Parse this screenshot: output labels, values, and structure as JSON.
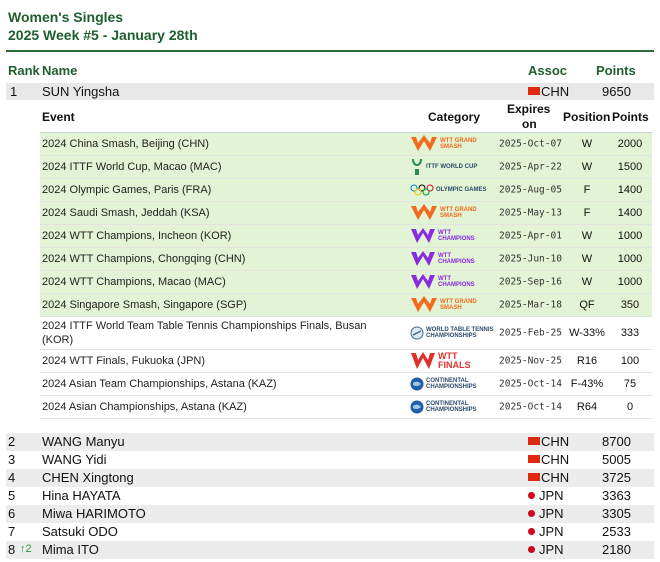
{
  "header": {
    "title": "Women's Singles",
    "week": "2025 Week #5 - January 28th"
  },
  "columns": {
    "rank": "Rank",
    "name": "Name",
    "assoc": "Assoc",
    "points": "Points"
  },
  "leader": {
    "rank": "1",
    "name": "SUN Yingsha",
    "assoc": "CHN",
    "points": "9650"
  },
  "event_columns": {
    "event": "Event",
    "category": "Category",
    "expires_l1": "Expires",
    "expires_l2": "on",
    "position": "Position",
    "points": "Points"
  },
  "events": [
    {
      "name": "2024 China Smash, Beijing (CHN)",
      "category_icon": "wtt-smash-logo",
      "logo_l1": "WTT GRAND",
      "logo_l2": "SMASH",
      "expires": "2025-Oct-07",
      "position": "W",
      "points": "2000",
      "highlight": true
    },
    {
      "name": "2024 ITTF World Cup, Macao (MAC)",
      "category_icon": "ittf-world-cup-logo",
      "logo_l1": "ITTF WORLD CUP",
      "logo_l2": "",
      "expires": "2025-Apr-22",
      "position": "W",
      "points": "1500",
      "highlight": true
    },
    {
      "name": "2024 Olympic Games, Paris (FRA)",
      "category_icon": "olympic-games-logo",
      "logo_l1": "OLYMPIC GAMES",
      "logo_l2": "",
      "expires": "2025-Aug-05",
      "position": "F",
      "points": "1400",
      "highlight": true
    },
    {
      "name": "2024 Saudi Smash, Jeddah (KSA)",
      "category_icon": "wtt-smash-logo",
      "logo_l1": "WTT GRAND",
      "logo_l2": "SMASH",
      "expires": "2025-May-13",
      "position": "F",
      "points": "1400",
      "highlight": true
    },
    {
      "name": "2024 WTT Champions, Incheon (KOR)",
      "category_icon": "wtt-champions-logo",
      "logo_l1": "WTT",
      "logo_l2": "CHAMPIONS",
      "expires": "2025-Apr-01",
      "position": "W",
      "points": "1000",
      "highlight": true
    },
    {
      "name": "2024 WTT Champions, Chongqing (CHN)",
      "category_icon": "wtt-champions-logo",
      "logo_l1": "WTT",
      "logo_l2": "CHAMPIONS",
      "expires": "2025-Jun-10",
      "position": "W",
      "points": "1000",
      "highlight": true
    },
    {
      "name": "2024 WTT Champions, Macao (MAC)",
      "category_icon": "wtt-champions-logo",
      "logo_l1": "WTT",
      "logo_l2": "CHAMPIONS",
      "expires": "2025-Sep-16",
      "position": "W",
      "points": "1000",
      "highlight": true
    },
    {
      "name": "2024 Singapore Smash, Singapore (SGP)",
      "category_icon": "wtt-smash-logo",
      "logo_l1": "WTT GRAND",
      "logo_l2": "SMASH",
      "expires": "2025-Mar-18",
      "position": "QF",
      "points": "350",
      "highlight": true
    },
    {
      "name": "2024 ITTF World Team Table Tennis Championships Finals, Busan (KOR)",
      "category_icon": "world-team-championships-logo",
      "logo_l1": "WORLD TABLE TENNIS",
      "logo_l2": "CHAMPIONSHIPS",
      "expires": "2025-Feb-25",
      "position": "W-33%",
      "points": "333",
      "highlight": false
    },
    {
      "name": "2024 WTT Finals, Fukuoka (JPN)",
      "category_icon": "wtt-finals-logo",
      "logo_l1": "WTT",
      "logo_l2": "FINALS",
      "expires": "2025-Nov-25",
      "position": "R16",
      "points": "100",
      "highlight": false
    },
    {
      "name": "2024 Asian Team Championships, Astana (KAZ)",
      "category_icon": "continental-championships-logo",
      "logo_l1": "CONTINENTAL",
      "logo_l2": "CHAMPIONSHIPS",
      "expires": "2025-Oct-14",
      "position": "F-43%",
      "points": "75",
      "highlight": false
    },
    {
      "name": "2024 Asian Championships, Astana (KAZ)",
      "category_icon": "continental-championships-logo",
      "logo_l1": "CONTINENTAL",
      "logo_l2": "CHAMPIONSHIPS",
      "expires": "2025-Oct-14",
      "position": "R64",
      "points": "0",
      "highlight": false
    }
  ],
  "players": [
    {
      "rank": "2",
      "change": "",
      "name": "WANG Manyu",
      "assoc": "CHN",
      "flag": "cn",
      "points": "8700"
    },
    {
      "rank": "3",
      "change": "",
      "name": "WANG Yidi",
      "assoc": "CHN",
      "flag": "cn",
      "points": "5005"
    },
    {
      "rank": "4",
      "change": "",
      "name": "CHEN Xingtong",
      "assoc": "CHN",
      "flag": "cn",
      "points": "3725"
    },
    {
      "rank": "5",
      "change": "",
      "name": "Hina HAYATA",
      "assoc": "JPN",
      "flag": "jp",
      "points": "3363"
    },
    {
      "rank": "6",
      "change": "",
      "name": "Miwa HARIMOTO",
      "assoc": "JPN",
      "flag": "jp",
      "points": "3305"
    },
    {
      "rank": "7",
      "change": "",
      "name": "Satsuki ODO",
      "assoc": "JPN",
      "flag": "jp",
      "points": "2533"
    },
    {
      "rank": "8",
      "change": "2",
      "name": "Mima ITO",
      "assoc": "JPN",
      "flag": "jp",
      "points": "2180"
    }
  ],
  "colors": {
    "accent": "#1f5f2f",
    "highlight_row": "#e2f3d6",
    "smash_orange": "#f26a1b",
    "champions_purple": "#8a2be2",
    "finals_red": "#e0322b"
  }
}
